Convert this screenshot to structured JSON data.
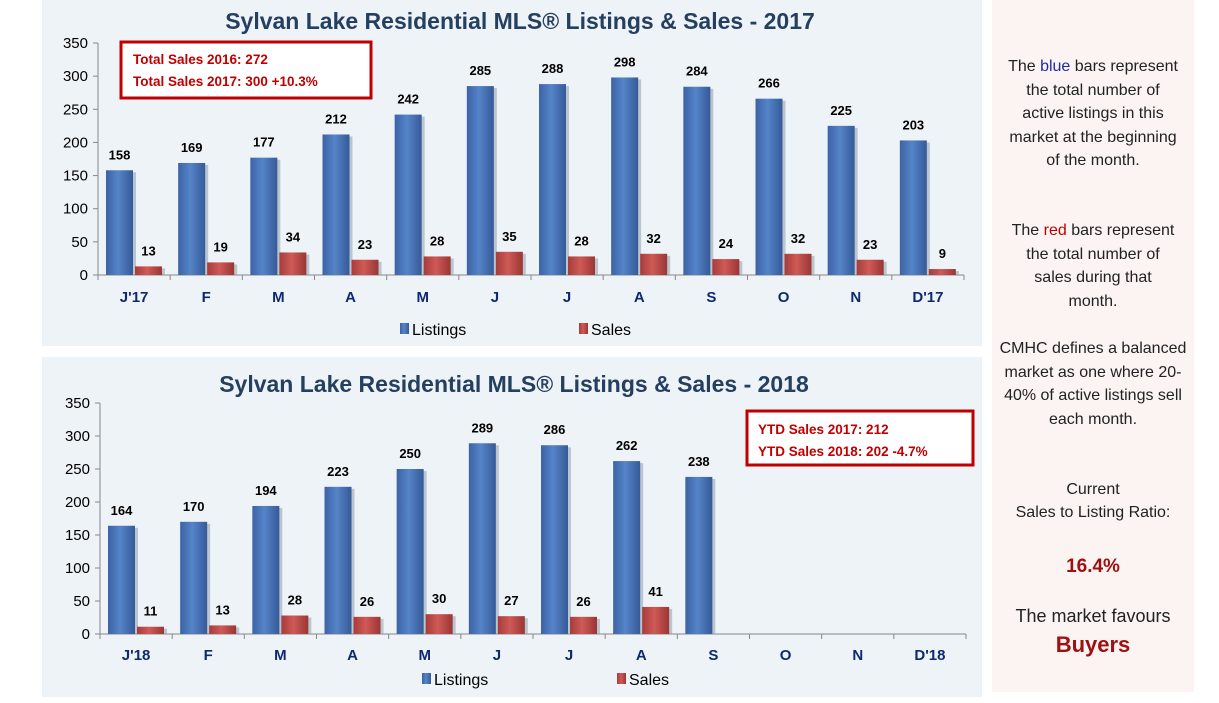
{
  "charts": [
    {
      "title": "Sylvan Lake Residential MLS® Listings & Sales - 2017",
      "yticks": [
        "0",
        "50",
        "100",
        "150",
        "200",
        "250",
        "300",
        "350"
      ],
      "ylim": [
        0,
        350
      ],
      "categories": [
        "J'17",
        "F",
        "M",
        "A",
        "M",
        "J",
        "J",
        "A",
        "S",
        "O",
        "N",
        "D'17"
      ],
      "listings": [
        158,
        169,
        177,
        212,
        242,
        285,
        288,
        298,
        284,
        266,
        225,
        203
      ],
      "sales": [
        13,
        19,
        34,
        23,
        28,
        35,
        28,
        32,
        24,
        32,
        23,
        9
      ],
      "legend": [
        "Listings",
        "Sales"
      ],
      "box": [
        "Total Sales 2016: 272",
        "Total Sales 2017: 300  +10.3%"
      ]
    },
    {
      "title": "Sylvan Lake Residential MLS® Listings & Sales - 2018",
      "yticks": [
        "0",
        "50",
        "100",
        "150",
        "200",
        "250",
        "300",
        "350"
      ],
      "ylim": [
        0,
        350
      ],
      "categories": [
        "J'18",
        "F",
        "M",
        "A",
        "M",
        "J",
        "J",
        "A",
        "S",
        "O",
        "N",
        "D'18"
      ],
      "listings": [
        164,
        170,
        194,
        223,
        250,
        289,
        286,
        262,
        238,
        null,
        null,
        null
      ],
      "sales": [
        11,
        13,
        28,
        26,
        30,
        27,
        26,
        41,
        null,
        null,
        null,
        null
      ],
      "legend": [
        "Listings",
        "Sales"
      ],
      "box": [
        "YTD Sales 2017: 212",
        "YTD Sales 2018: 202  -4.7%"
      ]
    }
  ],
  "chart_data": [
    {
      "type": "bar",
      "title": "Sylvan Lake Residential MLS® Listings & Sales - 2017",
      "categories": [
        "J'17",
        "F",
        "M",
        "A",
        "M",
        "J",
        "J",
        "A",
        "S",
        "O",
        "N",
        "D'17"
      ],
      "series": [
        {
          "name": "Listings",
          "values": [
            158,
            169,
            177,
            212,
            242,
            285,
            288,
            298,
            284,
            266,
            225,
            203
          ]
        },
        {
          "name": "Sales",
          "values": [
            13,
            19,
            34,
            23,
            28,
            35,
            28,
            32,
            24,
            32,
            23,
            9
          ]
        }
      ],
      "ylim": [
        0,
        350
      ],
      "legend": "bottom",
      "colors": {
        "Listings": "#4a76b8",
        "Sales": "#c0504d"
      },
      "annotation": [
        "Total Sales 2016: 272",
        "Total Sales 2017: 300  +10.3%"
      ]
    },
    {
      "type": "bar",
      "title": "Sylvan Lake Residential MLS® Listings & Sales - 2018",
      "categories": [
        "J'18",
        "F",
        "M",
        "A",
        "M",
        "J",
        "J",
        "A",
        "S",
        "O",
        "N",
        "D'18"
      ],
      "series": [
        {
          "name": "Listings",
          "values": [
            164,
            170,
            194,
            223,
            250,
            289,
            286,
            262,
            238,
            null,
            null,
            null
          ]
        },
        {
          "name": "Sales",
          "values": [
            11,
            13,
            28,
            26,
            30,
            27,
            26,
            41,
            null,
            null,
            null,
            null
          ]
        }
      ],
      "ylim": [
        0,
        350
      ],
      "legend": "bottom",
      "colors": {
        "Listings": "#4a76b8",
        "Sales": "#c0504d"
      },
      "annotation": [
        "YTD Sales 2017: 212",
        "YTD Sales 2018: 202  -4.7%"
      ]
    }
  ],
  "side": {
    "p1_a": "The ",
    "p1_blue": "blue",
    "p1_b": " bars represent the total number of active listings in this market at the beginning of the month.",
    "p2_a": "The ",
    "p2_red": "red",
    "p2_b": " bars represent the total number of sales during that month.",
    "p3": "CMHC defines a balanced market as one where 20-40% of active listings sell each month.",
    "p4_line1": "Current",
    "p4_line2": "Sales to Listing Ratio:",
    "ratio": "16.4%",
    "p5": "The market favours",
    "verdict": "Buyers"
  },
  "colors": {
    "listings": "#4a76b8",
    "sales": "#c0504d",
    "box_border": "#c00000",
    "title": "#243f60",
    "axis_label": "#0d2a6e"
  }
}
